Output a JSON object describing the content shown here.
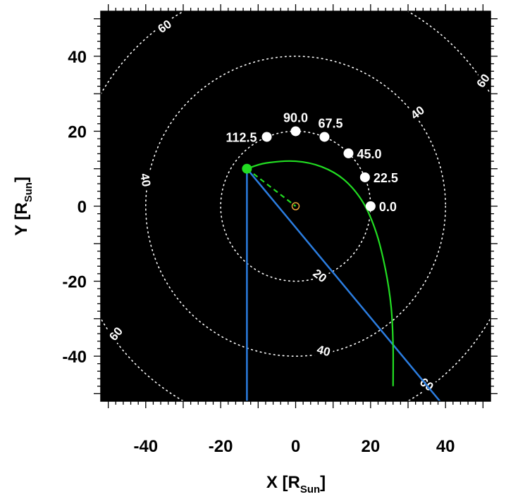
{
  "chart_data": {
    "type": "scatter",
    "xlabel": "X [RSun]",
    "ylabel": "Y [RSun]",
    "xlabel_main": "X [R",
    "xlabel_sub": "Sun",
    "xlabel_end": "]",
    "ylabel_main": "Y [R",
    "ylabel_sub": "Sun",
    "ylabel_end": "]",
    "xlim": [
      -52,
      52
    ],
    "ylim": [
      -52,
      52
    ],
    "x_ticks": [
      -40,
      -20,
      0,
      20,
      40
    ],
    "y_ticks": [
      -40,
      -20,
      0,
      20,
      40
    ],
    "x_tick_labels": [
      "-40",
      "-20",
      "0",
      "20",
      "40"
    ],
    "y_tick_labels": [
      "-40",
      "-20",
      "0",
      "20",
      "40"
    ],
    "background_color": "#000000",
    "grid": false,
    "contour_circles": {
      "radii": [
        20,
        40,
        60
      ],
      "color": "#ffffff",
      "style": "dotted",
      "labels": [
        {
          "text": "20",
          "x": 6.5,
          "y": -18.5,
          "angle": -38
        },
        {
          "text": "40",
          "x": 32.5,
          "y": 25,
          "angle": 38
        },
        {
          "text": "40",
          "x": -40,
          "y": 7,
          "angle": -80
        },
        {
          "text": "40",
          "x": 7.5,
          "y": -38.5,
          "angle": -15
        },
        {
          "text": "60",
          "x": -35,
          "y": 48,
          "angle": 35
        },
        {
          "text": "60",
          "x": 50,
          "y": 33.5,
          "angle": 55
        },
        {
          "text": "60",
          "x": -48,
          "y": -34,
          "angle": 50
        },
        {
          "text": "60",
          "x": 35,
          "y": -47.5,
          "angle": -37
        }
      ]
    },
    "series": [
      {
        "points": [
          {
            "x": 20,
            "y": 0,
            "label": "0.0"
          },
          {
            "x": 18.5,
            "y": 7.7,
            "label": "22.5"
          },
          {
            "x": 14.1,
            "y": 14.1,
            "label": "45.0"
          },
          {
            "x": 7.7,
            "y": 18.5,
            "label": "67.5"
          },
          {
            "x": 0,
            "y": 20,
            "label": "90.0"
          },
          {
            "x": -7.7,
            "y": 18.5,
            "label": "112.5"
          }
        ],
        "color": "#ffffff"
      }
    ],
    "sun_marker": {
      "x": 0,
      "y": 0,
      "color": "#e8a23a"
    },
    "spacecraft_marker": {
      "x": -13,
      "y": 10,
      "color": "#22dd22"
    },
    "dashed_line": {
      "from": [
        -13,
        10
      ],
      "to": [
        0,
        0
      ],
      "color": "#22dd22"
    },
    "green_curve": {
      "color": "#22dd22",
      "points": [
        [
          -13,
          10
        ],
        [
          -8,
          11.5
        ],
        [
          0,
          12
        ],
        [
          7,
          10.5
        ],
        [
          13,
          7
        ],
        [
          18,
          1
        ],
        [
          21.5,
          -7
        ],
        [
          24,
          -17
        ],
        [
          25.5,
          -27
        ],
        [
          26,
          -37
        ],
        [
          26,
          -48
        ]
      ]
    },
    "blue_lines": {
      "color": "#2b7de0",
      "lines": [
        {
          "from": [
            -13,
            10
          ],
          "to": [
            -13,
            -52
          ]
        },
        {
          "from": [
            -13,
            10
          ],
          "to": [
            38.5,
            -52
          ]
        }
      ]
    }
  }
}
